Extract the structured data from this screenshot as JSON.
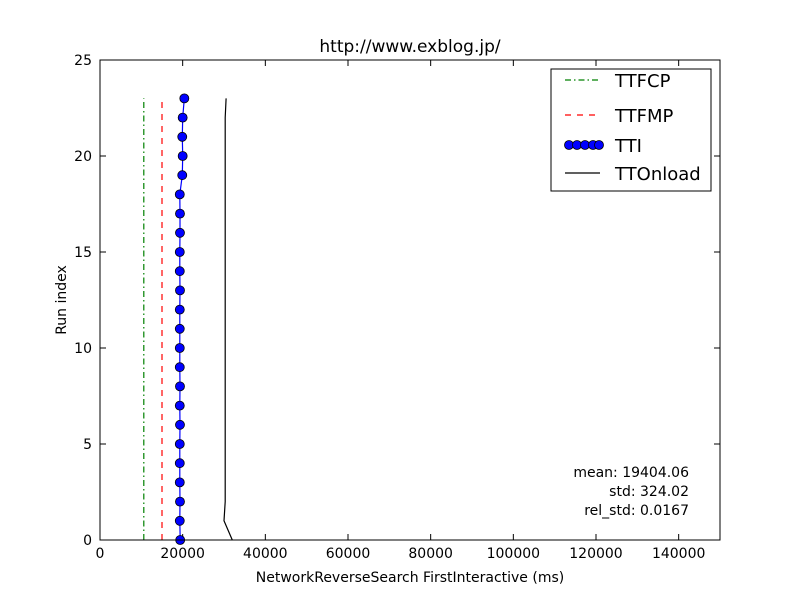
{
  "chart_data": {
    "type": "line",
    "title": "http://www.exblog.jp/",
    "xlabel": "NetworkReverseSearch FirstInteractive (ms)",
    "ylabel": "Run index",
    "xlim": [
      0,
      150000
    ],
    "ylim": [
      0,
      25
    ],
    "xticks": [
      0,
      20000,
      40000,
      60000,
      80000,
      100000,
      120000,
      140000
    ],
    "yticks": [
      0,
      5,
      10,
      15,
      20,
      25
    ],
    "grid": false,
    "legend_position": "top-right",
    "series": [
      {
        "name": "TTFCP",
        "style": "dashdot",
        "color": "#008000",
        "x": [
          10600,
          10600,
          10600,
          10600,
          10600,
          10600,
          10600,
          10600,
          10600,
          10600,
          10600,
          10600,
          10600,
          10600,
          10600,
          10600,
          10600,
          10600,
          10600,
          10600,
          10600,
          10600,
          10600,
          10600
        ],
        "y": [
          0,
          1,
          2,
          3,
          4,
          5,
          6,
          7,
          8,
          9,
          10,
          11,
          12,
          13,
          14,
          15,
          16,
          17,
          18,
          19,
          20,
          21,
          22,
          23
        ]
      },
      {
        "name": "TTFMP",
        "style": "dashed",
        "color": "#ff0000",
        "x": [
          15000,
          15000,
          15000,
          15000,
          15000,
          15000,
          15000,
          15000,
          15000,
          15000,
          15000,
          15000,
          15000,
          15000,
          15000,
          15000,
          15000,
          15000,
          15000,
          15000,
          15000,
          15000,
          15000,
          15000
        ],
        "y": [
          0,
          1,
          2,
          3,
          4,
          5,
          6,
          7,
          8,
          9,
          10,
          11,
          12,
          13,
          14,
          15,
          16,
          17,
          18,
          19,
          20,
          21,
          22,
          23
        ]
      },
      {
        "name": "TTI",
        "style": "solid-markers",
        "color": "#0000ff",
        "x": [
          19400,
          19300,
          19350,
          19300,
          19300,
          19300,
          19350,
          19300,
          19350,
          19300,
          19300,
          19300,
          19300,
          19350,
          19300,
          19300,
          19350,
          19350,
          19300,
          19900,
          20000,
          19900,
          20000,
          20400
        ],
        "y": [
          0,
          1,
          2,
          3,
          4,
          5,
          6,
          7,
          8,
          9,
          10,
          11,
          12,
          13,
          14,
          15,
          16,
          17,
          18,
          19,
          20,
          21,
          22,
          23
        ]
      },
      {
        "name": "TTOnload",
        "style": "solid",
        "color": "#000000",
        "x": [
          32000,
          30000,
          30300,
          30300,
          30300,
          30300,
          30300,
          30300,
          30300,
          30300,
          30300,
          30300,
          30300,
          30300,
          30300,
          30300,
          30300,
          30300,
          30300,
          30300,
          30300,
          30300,
          30300,
          30500
        ],
        "y": [
          0,
          1,
          2,
          3,
          4,
          5,
          6,
          7,
          8,
          9,
          10,
          11,
          12,
          13,
          14,
          15,
          16,
          17,
          18,
          19,
          20,
          21,
          22,
          23
        ]
      }
    ],
    "annotations": {
      "mean": "mean: 19404.06",
      "std": "std: 324.02",
      "rel_std": "rel_std: 0.0167"
    }
  }
}
